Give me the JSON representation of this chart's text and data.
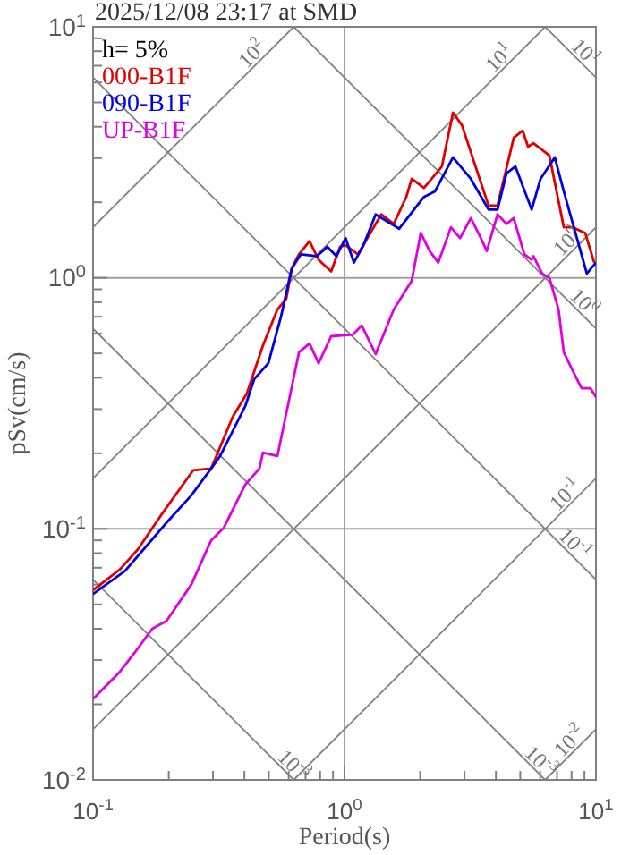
{
  "chart_data": {
    "type": "line",
    "title": "2025/12/08 23:17 at SMD",
    "xlabel": "Period(s)",
    "ylabel": "pSv(cm/s)",
    "log": "xy",
    "grid": true,
    "legend": "top left",
    "line_style": "solid",
    "marker": "none",
    "xlim": [
      0.1,
      10
    ],
    "ylim": [
      0.01,
      10
    ],
    "xticks": [
      {
        "value": 0.1,
        "label": "10$^{-1}$"
      },
      {
        "value": 0.2,
        "label": null
      },
      {
        "value": 0.3,
        "label": null
      },
      {
        "value": 0.4,
        "label": null
      },
      {
        "value": 0.5,
        "label": null
      },
      {
        "value": 0.6,
        "label": null
      },
      {
        "value": 0.7,
        "label": null
      },
      {
        "value": 0.8,
        "label": null
      },
      {
        "value": 0.9,
        "label": null
      },
      {
        "value": 1,
        "label": "10$^{0}$"
      },
      {
        "value": 2,
        "label": null
      },
      {
        "value": 3,
        "label": null
      },
      {
        "value": 4,
        "label": null
      },
      {
        "value": 5,
        "label": null
      },
      {
        "value": 6,
        "label": null
      },
      {
        "value": 7,
        "label": null
      },
      {
        "value": 8,
        "label": null
      },
      {
        "value": 9,
        "label": null
      },
      {
        "value": 10,
        "label": "10$^{1}$"
      }
    ],
    "yticks": [
      {
        "value": 0.01,
        "label": "10$^{-2}$"
      },
      {
        "value": 0.02,
        "label": null
      },
      {
        "value": 0.03,
        "label": null
      },
      {
        "value": 0.04,
        "label": null
      },
      {
        "value": 0.05,
        "label": null
      },
      {
        "value": 0.06,
        "label": null
      },
      {
        "value": 0.07,
        "label": null
      },
      {
        "value": 0.08,
        "label": null
      },
      {
        "value": 0.09,
        "label": null
      },
      {
        "value": 0.1,
        "label": "10$^{-1}$"
      },
      {
        "value": 0.2,
        "label": null
      },
      {
        "value": 0.3,
        "label": null
      },
      {
        "value": 0.4,
        "label": null
      },
      {
        "value": 0.5,
        "label": null
      },
      {
        "value": 0.6,
        "label": null
      },
      {
        "value": 0.7,
        "label": null
      },
      {
        "value": 0.8,
        "label": null
      },
      {
        "value": 0.9,
        "label": null
      },
      {
        "value": 1,
        "label": "10$^{0}$"
      },
      {
        "value": 2,
        "label": null
      },
      {
        "value": 3,
        "label": null
      },
      {
        "value": 4,
        "label": null
      },
      {
        "value": 5,
        "label": null
      },
      {
        "value": 6,
        "label": null
      },
      {
        "value": 7,
        "label": null
      },
      {
        "value": 8,
        "label": null
      },
      {
        "value": 9,
        "label": null
      },
      {
        "value": 10,
        "label": "10$^{1}$"
      }
    ],
    "annotations": [
      "h= 5%",
      {
        "text": "10$^{2}$",
        "x": 0.459,
        "y": 7.31
      },
      {
        "text": "10$^{1}$",
        "x": 4.41,
        "y": 7.02
      },
      {
        "text": "10$^{1}$",
        "x": 8.49,
        "y": 7.4
      },
      {
        "text": "10$^{0}$",
        "x": 8.2,
        "y": 1.305
      },
      {
        "text": "10$^{0}$",
        "x": 8.4,
        "y": 0.748
      },
      {
        "text": "10$^{-1}$",
        "x": 8.07,
        "y": 0.128
      },
      {
        "text": "10$^{-1}$",
        "x": 7.7,
        "y": 0.0816
      },
      {
        "text": "10$^{-3}$",
        "x": 0.587,
        "y": 0.0107
      },
      {
        "text": "10$^{-3}$",
        "x": 5.64,
        "y": 0.0111
      },
      {
        "text": "10$^{-2}$",
        "x": 8.4,
        "y": 0.01337
      }
    ],
    "series": [
      {
        "color": "#808080",
        "x": [
          6.283,
          10
        ],
        "values": [
          0.01,
          0.0159
        ]
      },
      {
        "color": "#808080",
        "x": [
          0.6283,
          10
        ],
        "values": [
          0.01,
          0.159
        ]
      },
      {
        "color": "#808080",
        "x": [
          0.1,
          10
        ],
        "values": [
          0.0159,
          1.59
        ]
      },
      {
        "color": "#808080",
        "x": [
          0.1,
          6.283
        ],
        "values": [
          0.159,
          10
        ]
      },
      {
        "color": "#808080",
        "x": [
          0.1,
          0.6283
        ],
        "values": [
          1.59,
          10
        ]
      },
      {
        "color": "#808080",
        "x": [
          0.1,
          0.6283
        ],
        "values": [
          0.0628,
          0.01
        ]
      },
      {
        "color": "#808080",
        "x": [
          0.1,
          6.283
        ],
        "values": [
          0.628,
          0.01
        ]
      },
      {
        "color": "#808080",
        "x": [
          0.1,
          10
        ],
        "values": [
          6.28,
          0.0628
        ]
      },
      {
        "color": "#808080",
        "x": [
          0.6283,
          10
        ],
        "values": [
          10,
          0.628
        ]
      },
      {
        "color": "#808080",
        "x": [
          6.283,
          10
        ],
        "values": [
          10,
          6.28
        ]
      },
      {
        "name": "000-B1F",
        "color": "#e00000",
        "x": [
          0.1,
          0.128,
          0.151,
          0.186,
          0.25,
          0.295,
          0.359,
          0.409,
          0.474,
          0.541,
          0.587,
          0.617,
          0.659,
          0.726,
          0.789,
          0.885,
          0.96,
          1.01,
          1.13,
          1.4,
          1.57,
          1.76,
          1.85,
          2.07,
          2.44,
          2.7,
          2.93,
          3.39,
          3.74,
          4.06,
          4.71,
          5.11,
          5.37,
          5.64,
          6.53,
          7.45,
          8.07,
          9.06,
          9.84
        ],
        "values": [
          0.057,
          0.069,
          0.083,
          0.113,
          0.171,
          0.174,
          0.279,
          0.346,
          0.538,
          0.748,
          0.826,
          1.09,
          1.24,
          1.4,
          1.18,
          1.06,
          1.33,
          1.35,
          1.24,
          1.79,
          1.64,
          2.1,
          2.48,
          2.28,
          2.78,
          4.55,
          4.06,
          2.61,
          1.94,
          1.94,
          3.61,
          3.86,
          3.33,
          3.44,
          3.07,
          1.59,
          1.59,
          1.51,
          1.15
        ]
      },
      {
        "name": "090-B1F",
        "color": "#0000e0",
        "x": [
          0.1,
          0.134,
          0.164,
          0.193,
          0.246,
          0.295,
          0.32,
          0.403,
          0.437,
          0.498,
          0.559,
          0.617,
          0.67,
          0.776,
          0.855,
          0.929,
          1.01,
          1.09,
          1.19,
          1.33,
          1.65,
          2.07,
          2.29,
          2.7,
          3.18,
          3.74,
          4.06,
          4.41,
          4.78,
          5.55,
          6.02,
          6.86,
          7.45,
          9.2,
          10
        ],
        "values": [
          0.055,
          0.068,
          0.086,
          0.104,
          0.136,
          0.174,
          0.195,
          0.308,
          0.394,
          0.457,
          0.7,
          1.09,
          1.24,
          1.22,
          1.33,
          1.22,
          1.44,
          1.15,
          1.35,
          1.79,
          1.57,
          2.1,
          2.21,
          3.02,
          2.48,
          1.87,
          1.87,
          2.61,
          2.78,
          1.87,
          2.48,
          3.02,
          2.21,
          1.04,
          1.15
        ]
      },
      {
        "name": "UP-B1F",
        "color": "#e000e0",
        "x": [
          0.1,
          0.128,
          0.146,
          0.172,
          0.196,
          0.246,
          0.295,
          0.331,
          0.403,
          0.459,
          0.474,
          0.541,
          0.659,
          0.726,
          0.789,
          0.885,
          1.08,
          1.17,
          1.33,
          1.57,
          1.85,
          2.01,
          2.18,
          2.36,
          2.65,
          2.88,
          3.18,
          3.45,
          3.68,
          4.06,
          4.41,
          4.71,
          5.19,
          5.55,
          5.64,
          6.11,
          6.53,
          7.1,
          7.45,
          8.07,
          8.77,
          9.52,
          10
        ],
        "values": [
          0.021,
          0.027,
          0.032,
          0.04,
          0.043,
          0.06,
          0.09,
          0.101,
          0.15,
          0.174,
          0.201,
          0.195,
          0.505,
          0.547,
          0.457,
          0.585,
          0.594,
          0.646,
          0.497,
          0.748,
          0.973,
          1.51,
          1.28,
          1.15,
          1.59,
          1.44,
          1.73,
          1.47,
          1.28,
          1.79,
          1.64,
          1.73,
          1.24,
          1.18,
          1.22,
          1.04,
          1.0,
          0.748,
          0.505,
          0.428,
          0.363,
          0.363,
          0.335
        ]
      }
    ]
  }
}
